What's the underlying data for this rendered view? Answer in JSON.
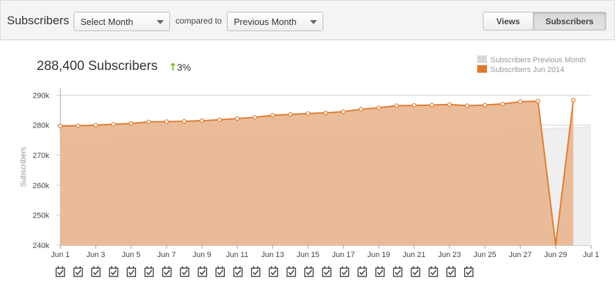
{
  "toolbar": {
    "title": "Subscribers",
    "month_select": "Select Month",
    "compared_label": "compared to",
    "compare_select": "Previous Month",
    "views_button": "Views",
    "subscribers_button": "Subscribers",
    "active_tab": "Subscribers"
  },
  "summary": {
    "value_text": "288,400 Subscribers",
    "change_text": "3%",
    "change_direction": "up"
  },
  "colors": {
    "current_line": "#e07b2e",
    "current_fill": "#e9b58f",
    "previous_fill": "#efefef",
    "previous_line": "#d8d8d8",
    "up_arrow": "#7ab317"
  },
  "chart_data": {
    "type": "area",
    "title": "",
    "xlabel": "",
    "ylabel": "Subscribers",
    "ylim": [
      240000,
      291000
    ],
    "y_ticks": [
      {
        "value": 290000,
        "label": "290k"
      },
      {
        "value": 280000,
        "label": "280k"
      },
      {
        "value": 270000,
        "label": "270k"
      },
      {
        "value": 260000,
        "label": "260k"
      },
      {
        "value": 250000,
        "label": "250k"
      },
      {
        "value": 240000,
        "label": "240k"
      }
    ],
    "x": [
      "Jun 1",
      "Jun 2",
      "Jun 3",
      "Jun 4",
      "Jun 5",
      "Jun 6",
      "Jun 7",
      "Jun 8",
      "Jun 9",
      "Jun 10",
      "Jun 11",
      "Jun 12",
      "Jun 13",
      "Jun 14",
      "Jun 15",
      "Jun 16",
      "Jun 17",
      "Jun 18",
      "Jun 19",
      "Jun 20",
      "Jun 21",
      "Jun 22",
      "Jun 23",
      "Jun 24",
      "Jun 25",
      "Jun 26",
      "Jun 27",
      "Jun 28",
      "Jun 29",
      "Jun 30",
      "Jul 1"
    ],
    "x_tick_labels": [
      "Jun 1",
      "Jun 3",
      "Jun 5",
      "Jun 7",
      "Jun 9",
      "Jun 11",
      "Jun 13",
      "Jun 15",
      "Jun 17",
      "Jun 19",
      "Jun 21",
      "Jun 23",
      "Jun 25",
      "Jun 27",
      "Jun 29",
      "Jul 1"
    ],
    "grid": true,
    "legend_position": "top-right",
    "series": [
      {
        "name": "Subscribers Previous Month",
        "values": [
          274800,
          275100,
          275400,
          275700,
          276000,
          276300,
          276500,
          276800,
          276900,
          276900,
          276900,
          276900,
          276900,
          276900,
          276900,
          276900,
          276900,
          276900,
          276900,
          277000,
          277100,
          277300,
          277500,
          277800,
          278000,
          278300,
          278500,
          278800,
          279000,
          279200,
          279400
        ]
      },
      {
        "name": "Subscribers Jun 2014",
        "values": [
          279700,
          279800,
          280000,
          280300,
          280600,
          281100,
          281200,
          281300,
          281500,
          281800,
          282200,
          282600,
          283300,
          283600,
          283900,
          284100,
          284500,
          285300,
          285800,
          286500,
          286600,
          286700,
          286900,
          286500,
          286700,
          287100,
          287800,
          288000,
          240000,
          288300,
          null
        ]
      }
    ]
  },
  "annotations": {
    "count": 24
  }
}
